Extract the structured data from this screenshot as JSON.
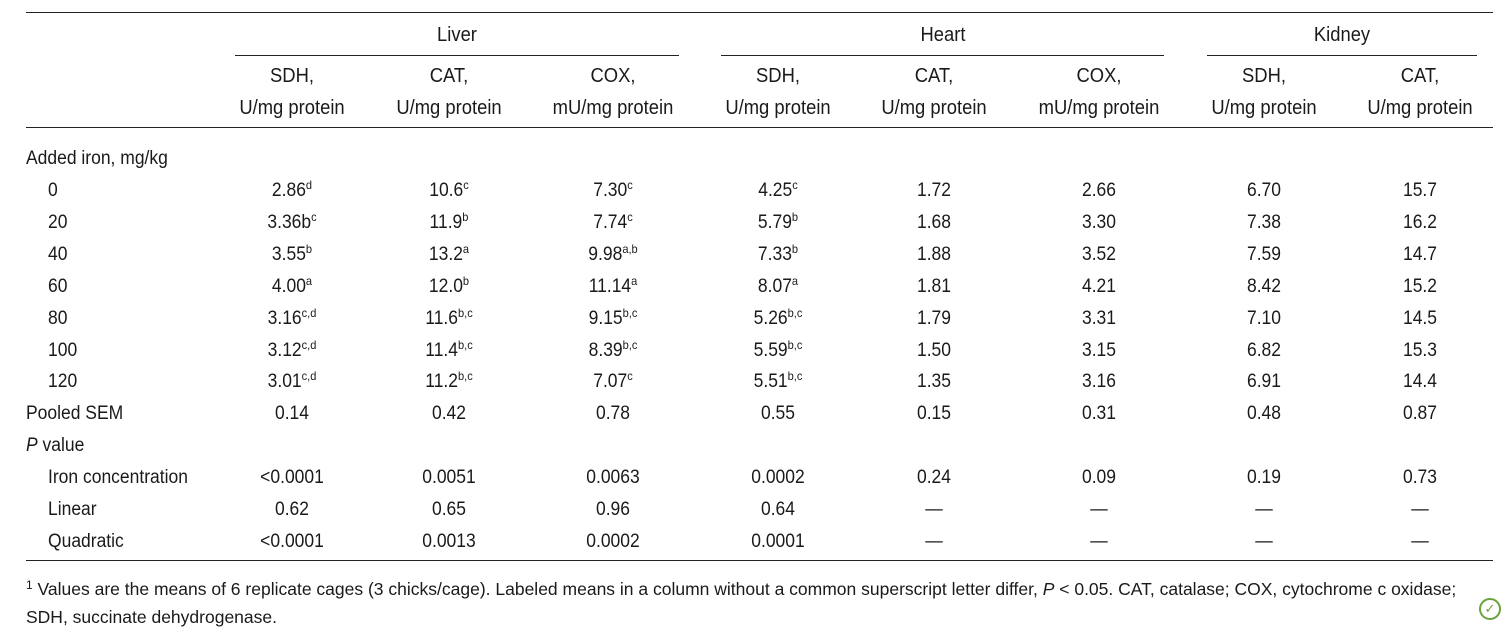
{
  "groups": [
    "Liver",
    "Heart",
    "Kidney"
  ],
  "columns": [
    {
      "line1": "SDH,",
      "line2": "U/mg protein"
    },
    {
      "line1": "CAT,",
      "line2": "U/mg protein"
    },
    {
      "line1": "COX,",
      "line2": "mU/mg protein"
    },
    {
      "line1": "SDH,",
      "line2": "U/mg protein"
    },
    {
      "line1": "CAT,",
      "line2": "U/mg protein"
    },
    {
      "line1": "COX,",
      "line2": "mU/mg protein"
    },
    {
      "line1": "SDH,",
      "line2": "U/mg protein"
    },
    {
      "line1": "CAT,",
      "line2": "U/mg protein"
    }
  ],
  "section_iron": "Added iron, mg/kg",
  "rows": [
    {
      "label": "0",
      "cells": [
        {
          "v": "2.86",
          "s": "d"
        },
        {
          "v": "10.6",
          "s": "c"
        },
        {
          "v": "7.30",
          "s": "c"
        },
        {
          "v": "4.25",
          "s": "c"
        },
        {
          "v": "1.72",
          "s": ""
        },
        {
          "v": "2.66",
          "s": ""
        },
        {
          "v": "6.70",
          "s": ""
        },
        {
          "v": "15.7",
          "s": ""
        }
      ]
    },
    {
      "label": "20",
      "cells": [
        {
          "v": "3.36b",
          "s": "c"
        },
        {
          "v": "11.9",
          "s": "b"
        },
        {
          "v": "7.74",
          "s": "c"
        },
        {
          "v": "5.79",
          "s": "b"
        },
        {
          "v": "1.68",
          "s": ""
        },
        {
          "v": "3.30",
          "s": ""
        },
        {
          "v": "7.38",
          "s": ""
        },
        {
          "v": "16.2",
          "s": ""
        }
      ]
    },
    {
      "label": "40",
      "cells": [
        {
          "v": "3.55",
          "s": "b"
        },
        {
          "v": "13.2",
          "s": "a"
        },
        {
          "v": "9.98",
          "s": "a,b"
        },
        {
          "v": "7.33",
          "s": "b"
        },
        {
          "v": "1.88",
          "s": ""
        },
        {
          "v": "3.52",
          "s": ""
        },
        {
          "v": "7.59",
          "s": ""
        },
        {
          "v": "14.7",
          "s": ""
        }
      ]
    },
    {
      "label": "60",
      "cells": [
        {
          "v": "4.00",
          "s": "a"
        },
        {
          "v": "12.0",
          "s": "b"
        },
        {
          "v": "11.14",
          "s": "a"
        },
        {
          "v": "8.07",
          "s": "a"
        },
        {
          "v": "1.81",
          "s": ""
        },
        {
          "v": "4.21",
          "s": ""
        },
        {
          "v": "8.42",
          "s": ""
        },
        {
          "v": "15.2",
          "s": ""
        }
      ]
    },
    {
      "label": "80",
      "cells": [
        {
          "v": "3.16",
          "s": "c,d"
        },
        {
          "v": "11.6",
          "s": "b,c"
        },
        {
          "v": "9.15",
          "s": "b,c"
        },
        {
          "v": "5.26",
          "s": "b,c"
        },
        {
          "v": "1.79",
          "s": ""
        },
        {
          "v": "3.31",
          "s": ""
        },
        {
          "v": "7.10",
          "s": ""
        },
        {
          "v": "14.5",
          "s": ""
        }
      ]
    },
    {
      "label": "100",
      "cells": [
        {
          "v": "3.12",
          "s": "c,d"
        },
        {
          "v": "11.4",
          "s": "b,c"
        },
        {
          "v": "8.39",
          "s": "b,c"
        },
        {
          "v": "5.59",
          "s": "b,c"
        },
        {
          "v": "1.50",
          "s": ""
        },
        {
          "v": "3.15",
          "s": ""
        },
        {
          "v": "6.82",
          "s": ""
        },
        {
          "v": "15.3",
          "s": ""
        }
      ]
    },
    {
      "label": "120",
      "cells": [
        {
          "v": "3.01",
          "s": "c,d"
        },
        {
          "v": "11.2",
          "s": "b,c"
        },
        {
          "v": "7.07",
          "s": "c"
        },
        {
          "v": "5.51",
          "s": "b,c"
        },
        {
          "v": "1.35",
          "s": ""
        },
        {
          "v": "3.16",
          "s": ""
        },
        {
          "v": "6.91",
          "s": ""
        },
        {
          "v": "14.4",
          "s": ""
        }
      ]
    }
  ],
  "pooled": {
    "label": "Pooled SEM",
    "cells": [
      "0.14",
      "0.42",
      "0.78",
      "0.55",
      "0.15",
      "0.31",
      "0.48",
      "0.87"
    ]
  },
  "pvalue_label_italic": "P",
  "pvalue_label_rest": " value",
  "prows": [
    {
      "label": "Iron concentration",
      "cells": [
        "<0.0001",
        "0.0051",
        "0.0063",
        "0.0002",
        "0.24",
        "0.09",
        "0.19",
        "0.73"
      ]
    },
    {
      "label": "Linear",
      "cells": [
        "0.62",
        "0.65",
        "0.96",
        "0.64",
        "—",
        "—",
        "—",
        "—"
      ]
    },
    {
      "label": "Quadratic",
      "cells": [
        "<0.0001",
        "0.0013",
        "0.0002",
        "0.0001",
        "—",
        "—",
        "—",
        "—"
      ]
    }
  ],
  "footnote": {
    "mark": "1",
    "part1": " Values are the means of 6 replicate cages (3 chicks/cage). Labeled means in a column without a common superscript letter differ, ",
    "p_italic": "P",
    "part2": " < 0.05. CAT, catalase; COX, cytochrome c oxidase; SDH, succinate dehydrogenase."
  },
  "logo_icon": "publisher-leaf-icon",
  "accent": "#6aa33a"
}
